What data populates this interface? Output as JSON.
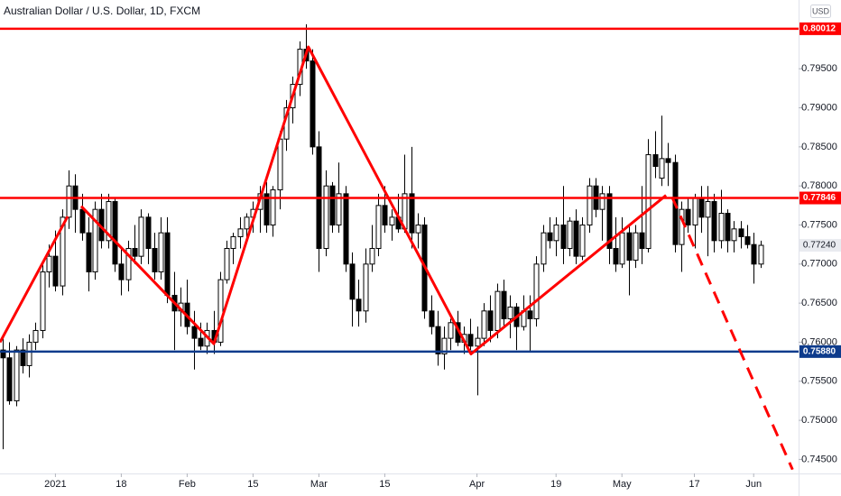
{
  "chart_data": {
    "type": "candlestick",
    "title": "Australian Dollar / U.S. Dollar, 1D, FXCM",
    "currency": "USD",
    "up_color": "#ffffff",
    "down_color": "#000000",
    "outline_color": "#000000",
    "open": [
      0.759,
      0.758,
      0.7525,
      0.759,
      0.757,
      0.76,
      0.7615,
      0.769,
      0.771,
      0.7672,
      0.776,
      0.78,
      0.777,
      0.774,
      0.769,
      0.777,
      0.773,
      0.778,
      0.77,
      0.768,
      0.772,
      0.771,
      0.776,
      0.772,
      0.769,
      0.774,
      0.766,
      0.764,
      0.765,
      0.762,
      0.7605,
      0.7595,
      0.7615,
      0.76,
      0.768,
      0.772,
      0.7735,
      0.7745,
      0.776,
      0.777,
      0.779,
      0.775,
      0.7795,
      0.786,
      0.79,
      0.793,
      0.7975,
      0.796,
      0.785,
      0.772,
      0.78,
      0.775,
      0.779,
      0.77,
      0.7655,
      0.764,
      0.77,
      0.772,
      0.7775,
      0.775,
      0.776,
      0.7745,
      0.779,
      0.774,
      0.775,
      0.764,
      0.762,
      0.7585,
      0.7605,
      0.7625,
      0.76,
      0.761,
      0.7595,
      0.7605,
      0.764,
      0.7615,
      0.7665,
      0.763,
      0.7645,
      0.762,
      0.764,
      0.763,
      0.77,
      0.774,
      0.773,
      0.775,
      0.772,
      0.7755,
      0.771,
      0.775,
      0.78,
      0.777,
      0.779,
      0.772,
      0.77,
      0.774,
      0.7705,
      0.774,
      0.772,
      0.784,
      0.781,
      0.7835,
      0.783,
      0.7725,
      0.777,
      0.775,
      0.7785,
      0.776,
      0.778,
      0.773,
      0.7765,
      0.773,
      0.7745,
      0.7735,
      0.7725,
      0.77
    ],
    "high": [
      0.7605,
      0.76,
      0.7595,
      0.7605,
      0.761,
      0.7625,
      0.77,
      0.7725,
      0.7743,
      0.777,
      0.782,
      0.7815,
      0.779,
      0.776,
      0.778,
      0.779,
      0.779,
      0.7785,
      0.772,
      0.773,
      0.775,
      0.777,
      0.7765,
      0.774,
      0.776,
      0.776,
      0.769,
      0.767,
      0.768,
      0.764,
      0.7625,
      0.7625,
      0.764,
      0.769,
      0.773,
      0.774,
      0.776,
      0.7765,
      0.778,
      0.78,
      0.7805,
      0.78,
      0.787,
      0.791,
      0.794,
      0.7985,
      0.8007,
      0.7975,
      0.787,
      0.782,
      0.7805,
      0.783,
      0.78,
      0.7715,
      0.768,
      0.772,
      0.775,
      0.779,
      0.78,
      0.777,
      0.779,
      0.784,
      0.785,
      0.7765,
      0.776,
      0.766,
      0.764,
      0.762,
      0.763,
      0.764,
      0.762,
      0.763,
      0.762,
      0.765,
      0.766,
      0.7675,
      0.768,
      0.766,
      0.765,
      0.766,
      0.766,
      0.771,
      0.775,
      0.776,
      0.776,
      0.78,
      0.776,
      0.777,
      0.776,
      0.781,
      0.781,
      0.78,
      0.78,
      0.776,
      0.776,
      0.775,
      0.775,
      0.78,
      0.786,
      0.787,
      0.789,
      0.7855,
      0.784,
      0.778,
      0.7785,
      0.779,
      0.78,
      0.78,
      0.779,
      0.7795,
      0.777,
      0.7755,
      0.7755,
      0.775,
      0.774,
      0.773
    ],
    "low": [
      0.7463,
      0.752,
      0.7518,
      0.756,
      0.7555,
      0.759,
      0.7605,
      0.767,
      0.7665,
      0.766,
      0.7745,
      0.774,
      0.773,
      0.7665,
      0.768,
      0.772,
      0.772,
      0.769,
      0.766,
      0.7665,
      0.77,
      0.77,
      0.77,
      0.768,
      0.768,
      0.765,
      0.759,
      0.762,
      0.761,
      0.7565,
      0.759,
      0.7585,
      0.7585,
      0.7595,
      0.7675,
      0.77,
      0.772,
      0.773,
      0.774,
      0.774,
      0.774,
      0.7735,
      0.777,
      0.7845,
      0.788,
      0.7915,
      0.795,
      0.784,
      0.769,
      0.771,
      0.774,
      0.774,
      0.769,
      0.762,
      0.762,
      0.7625,
      0.769,
      0.771,
      0.774,
      0.773,
      0.774,
      0.774,
      0.772,
      0.772,
      0.763,
      0.761,
      0.757,
      0.7565,
      0.759,
      0.7595,
      0.7585,
      0.759,
      0.7532,
      0.7595,
      0.76,
      0.7605,
      0.762,
      0.7605,
      0.759,
      0.7615,
      0.7588,
      0.762,
      0.769,
      0.772,
      0.771,
      0.77,
      0.771,
      0.77,
      0.7705,
      0.774,
      0.776,
      0.773,
      0.77,
      0.769,
      0.7695,
      0.766,
      0.7695,
      0.77,
      0.7715,
      0.781,
      0.78,
      0.78,
      0.7715,
      0.769,
      0.774,
      0.772,
      0.774,
      0.771,
      0.7715,
      0.772,
      0.7715,
      0.7715,
      0.772,
      0.772,
      0.7675,
      0.7695
    ],
    "close": [
      0.758,
      0.7525,
      0.759,
      0.757,
      0.76,
      0.7615,
      0.769,
      0.771,
      0.7672,
      0.776,
      0.78,
      0.777,
      0.774,
      0.769,
      0.777,
      0.773,
      0.778,
      0.77,
      0.768,
      0.772,
      0.771,
      0.776,
      0.772,
      0.769,
      0.774,
      0.766,
      0.764,
      0.765,
      0.762,
      0.7605,
      0.7595,
      0.7615,
      0.76,
      0.768,
      0.772,
      0.7735,
      0.7745,
      0.776,
      0.777,
      0.779,
      0.775,
      0.7795,
      0.786,
      0.79,
      0.793,
      0.7975,
      0.796,
      0.785,
      0.772,
      0.78,
      0.775,
      0.779,
      0.77,
      0.7655,
      0.764,
      0.77,
      0.772,
      0.7775,
      0.775,
      0.776,
      0.7745,
      0.779,
      0.774,
      0.775,
      0.764,
      0.762,
      0.7585,
      0.7605,
      0.7625,
      0.76,
      0.761,
      0.7595,
      0.7605,
      0.764,
      0.7615,
      0.7665,
      0.763,
      0.7645,
      0.762,
      0.764,
      0.763,
      0.77,
      0.774,
      0.773,
      0.775,
      0.772,
      0.7755,
      0.771,
      0.775,
      0.78,
      0.777,
      0.779,
      0.772,
      0.77,
      0.774,
      0.7705,
      0.774,
      0.772,
      0.784,
      0.7825,
      0.7835,
      0.783,
      0.7725,
      0.777,
      0.775,
      0.7785,
      0.776,
      0.778,
      0.773,
      0.7765,
      0.773,
      0.7745,
      0.7735,
      0.7725,
      0.77,
      0.7724
    ],
    "xlim": [
      -0.41,
      120.82
    ],
    "ylim": [
      0.7432,
      0.8038
    ],
    "xticks": [
      {
        "value": 8,
        "label": "2021"
      },
      {
        "value": 18,
        "label": "18"
      },
      {
        "value": 28,
        "label": "Feb"
      },
      {
        "value": 38,
        "label": "15"
      },
      {
        "value": 48,
        "label": "Mar"
      },
      {
        "value": 58,
        "label": "15"
      },
      {
        "value": 72,
        "label": "Apr"
      },
      {
        "value": 84,
        "label": "19"
      },
      {
        "value": 94,
        "label": "May"
      },
      {
        "value": 105,
        "label": "17"
      },
      {
        "value": 114,
        "label": "Jun"
      }
    ],
    "yticks": [
      {
        "value": 0.745,
        "label": "0.74500"
      },
      {
        "value": 0.75,
        "label": "0.75000"
      },
      {
        "value": 0.755,
        "label": "0.75500"
      },
      {
        "value": 0.76,
        "label": "0.76000"
      },
      {
        "value": 0.765,
        "label": "0.76500"
      },
      {
        "value": 0.77,
        "label": "0.77000"
      },
      {
        "value": 0.775,
        "label": "0.77500"
      },
      {
        "value": 0.78,
        "label": "0.78000"
      },
      {
        "value": 0.785,
        "label": "0.78500"
      },
      {
        "value": 0.79,
        "label": "0.79000"
      },
      {
        "value": 0.795,
        "label": "0.79500"
      }
    ],
    "levels": [
      {
        "value": 0.80012,
        "label": "0.80012",
        "color": "#ff0000"
      },
      {
        "value": 0.77846,
        "label": "0.77846",
        "color": "#ff0000"
      },
      {
        "value": 0.7588,
        "label": "0.75880",
        "color": "#0d3b8c"
      }
    ],
    "last_price": {
      "value": 0.7724,
      "label": "0.77240"
    },
    "drawings": [
      {
        "color": "#ff0000",
        "style": "solid",
        "x": [
          -0.41,
          9.86
        ],
        "y": [
          0.76,
          0.7761
        ]
      },
      {
        "color": "#ff0000",
        "style": "solid",
        "x": [
          11.92,
          32.05,
          46.4,
          71.1,
          100.7
        ],
        "y": [
          0.7774,
          0.7598,
          0.7978,
          0.7585,
          0.7788
        ]
      },
      {
        "color": "#ff0000",
        "style": "dashed",
        "x": [
          101.6,
          119.9
        ],
        "y": [
          0.7786,
          0.7437
        ]
      }
    ]
  }
}
